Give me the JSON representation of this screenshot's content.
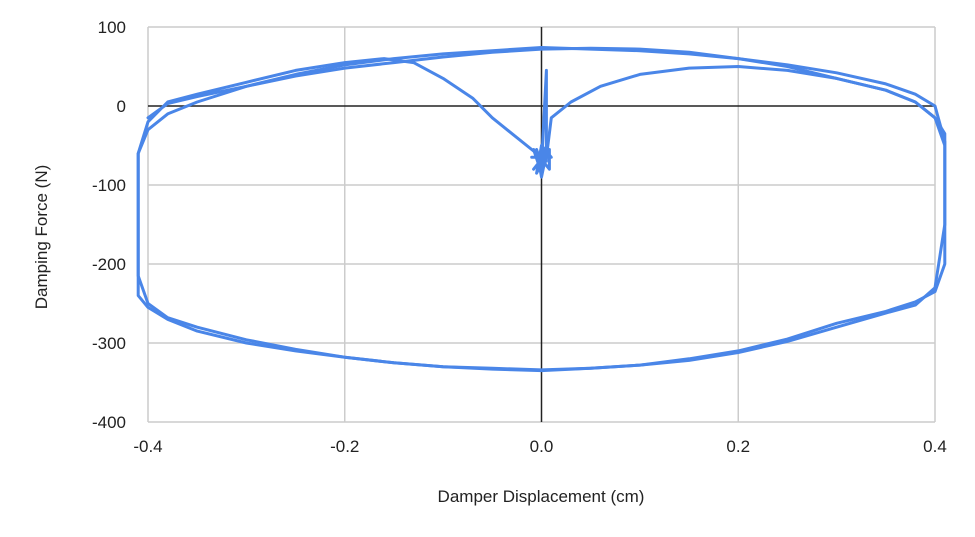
{
  "chart_data": {
    "type": "scatter",
    "title": "",
    "xlabel": "Damper Displacement (cm)",
    "ylabel": "Damping Force (N)",
    "xlim": [
      -0.4,
      0.4
    ],
    "ylim": [
      -400,
      100
    ],
    "xticks": [
      -0.4,
      -0.2,
      0.0,
      0.2,
      0.4
    ],
    "xtick_labels": [
      "-0.4",
      "-0.2",
      "0.0",
      "0.2",
      "0.4"
    ],
    "yticks": [
      100,
      0,
      -100,
      -200,
      -300,
      -400
    ],
    "ytick_labels": [
      "100",
      "0",
      "-100",
      "-200",
      "-300",
      "-400"
    ],
    "grid": true,
    "legend": "none",
    "line_color": "#4a86e8",
    "axis_color": "#222222",
    "grid_color": "#cccccc",
    "series": [
      {
        "mode": "lines",
        "x": [
          0.0,
          -0.01,
          -0.03,
          -0.05,
          -0.07,
          -0.1,
          -0.13,
          -0.16,
          -0.2,
          -0.25,
          -0.3,
          -0.35,
          -0.38,
          -0.4,
          -0.41,
          -0.41,
          -0.41,
          -0.41,
          -0.4,
          -0.38,
          -0.35,
          -0.3,
          -0.25,
          -0.2,
          -0.15,
          -0.1,
          -0.05,
          0.0,
          0.05,
          0.1,
          0.15,
          0.2,
          0.25,
          0.3,
          0.35,
          0.38,
          0.4,
          0.41,
          0.41,
          0.41,
          0.41,
          0.4,
          0.38,
          0.35,
          0.3,
          0.25,
          0.2,
          0.15,
          0.1,
          0.05,
          0.0,
          -0.05,
          -0.1,
          -0.15,
          -0.2,
          -0.25,
          -0.3,
          -0.35,
          -0.38,
          -0.4
        ],
        "y": [
          -65,
          -55,
          -35,
          -15,
          10,
          35,
          55,
          60,
          55,
          45,
          30,
          15,
          5,
          -20,
          -60,
          -140,
          -210,
          -240,
          -255,
          -270,
          -285,
          -300,
          -310,
          -318,
          -325,
          -330,
          -332,
          -334,
          -332,
          -328,
          -320,
          -310,
          -295,
          -275,
          -260,
          -248,
          -235,
          -200,
          -120,
          -60,
          -35,
          -15,
          5,
          20,
          35,
          50,
          60,
          68,
          72,
          73,
          72,
          68,
          62,
          55,
          48,
          38,
          25,
          12,
          3,
          -15
        ]
      },
      {
        "mode": "lines",
        "x": [
          0.005,
          0.01,
          0.03,
          0.06,
          0.1,
          0.15,
          0.2,
          0.25,
          0.3,
          0.35,
          0.38,
          0.4,
          0.41,
          0.41,
          0.4,
          0.38,
          0.35,
          0.3,
          0.25,
          0.2,
          0.15,
          0.1,
          0.05,
          0.0,
          -0.05,
          -0.1,
          -0.15,
          -0.2,
          -0.25,
          -0.3,
          -0.35,
          -0.38,
          -0.4,
          -0.41,
          -0.41,
          -0.41,
          -0.4,
          -0.38,
          -0.35,
          -0.3,
          -0.25,
          -0.2,
          -0.15,
          -0.1,
          -0.05,
          0.0,
          0.05,
          0.1,
          0.15,
          0.2,
          0.25,
          0.3,
          0.35,
          0.38,
          0.4,
          0.41,
          0.41
        ],
        "y": [
          -65,
          -15,
          5,
          25,
          40,
          48,
          50,
          45,
          35,
          20,
          5,
          -15,
          -50,
          -150,
          -230,
          -252,
          -262,
          -280,
          -298,
          -312,
          -322,
          -328,
          -332,
          -335,
          -333,
          -330,
          -325,
          -318,
          -308,
          -296,
          -280,
          -268,
          -250,
          -215,
          -130,
          -60,
          -30,
          -10,
          5,
          25,
          40,
          52,
          60,
          66,
          70,
          74,
          72,
          70,
          66,
          60,
          52,
          42,
          28,
          15,
          0,
          -45,
          -140
        ]
      },
      {
        "mode": "lines",
        "x": [
          0.0,
          0.005,
          0.005,
          0.0,
          -0.005,
          0.005,
          0.0,
          -0.005,
          0.0,
          0.005,
          0.0
        ],
        "y": [
          -75,
          45,
          -70,
          -50,
          -85,
          -60,
          -90,
          -55,
          -75,
          -65,
          -70
        ]
      },
      {
        "mode": "lines",
        "x": [
          -0.01,
          0.01,
          0.0,
          0.0,
          -0.008,
          0.008,
          0.008,
          -0.008
        ],
        "y": [
          -65,
          -65,
          -50,
          -85,
          -55,
          -80,
          -55,
          -80
        ]
      }
    ]
  }
}
